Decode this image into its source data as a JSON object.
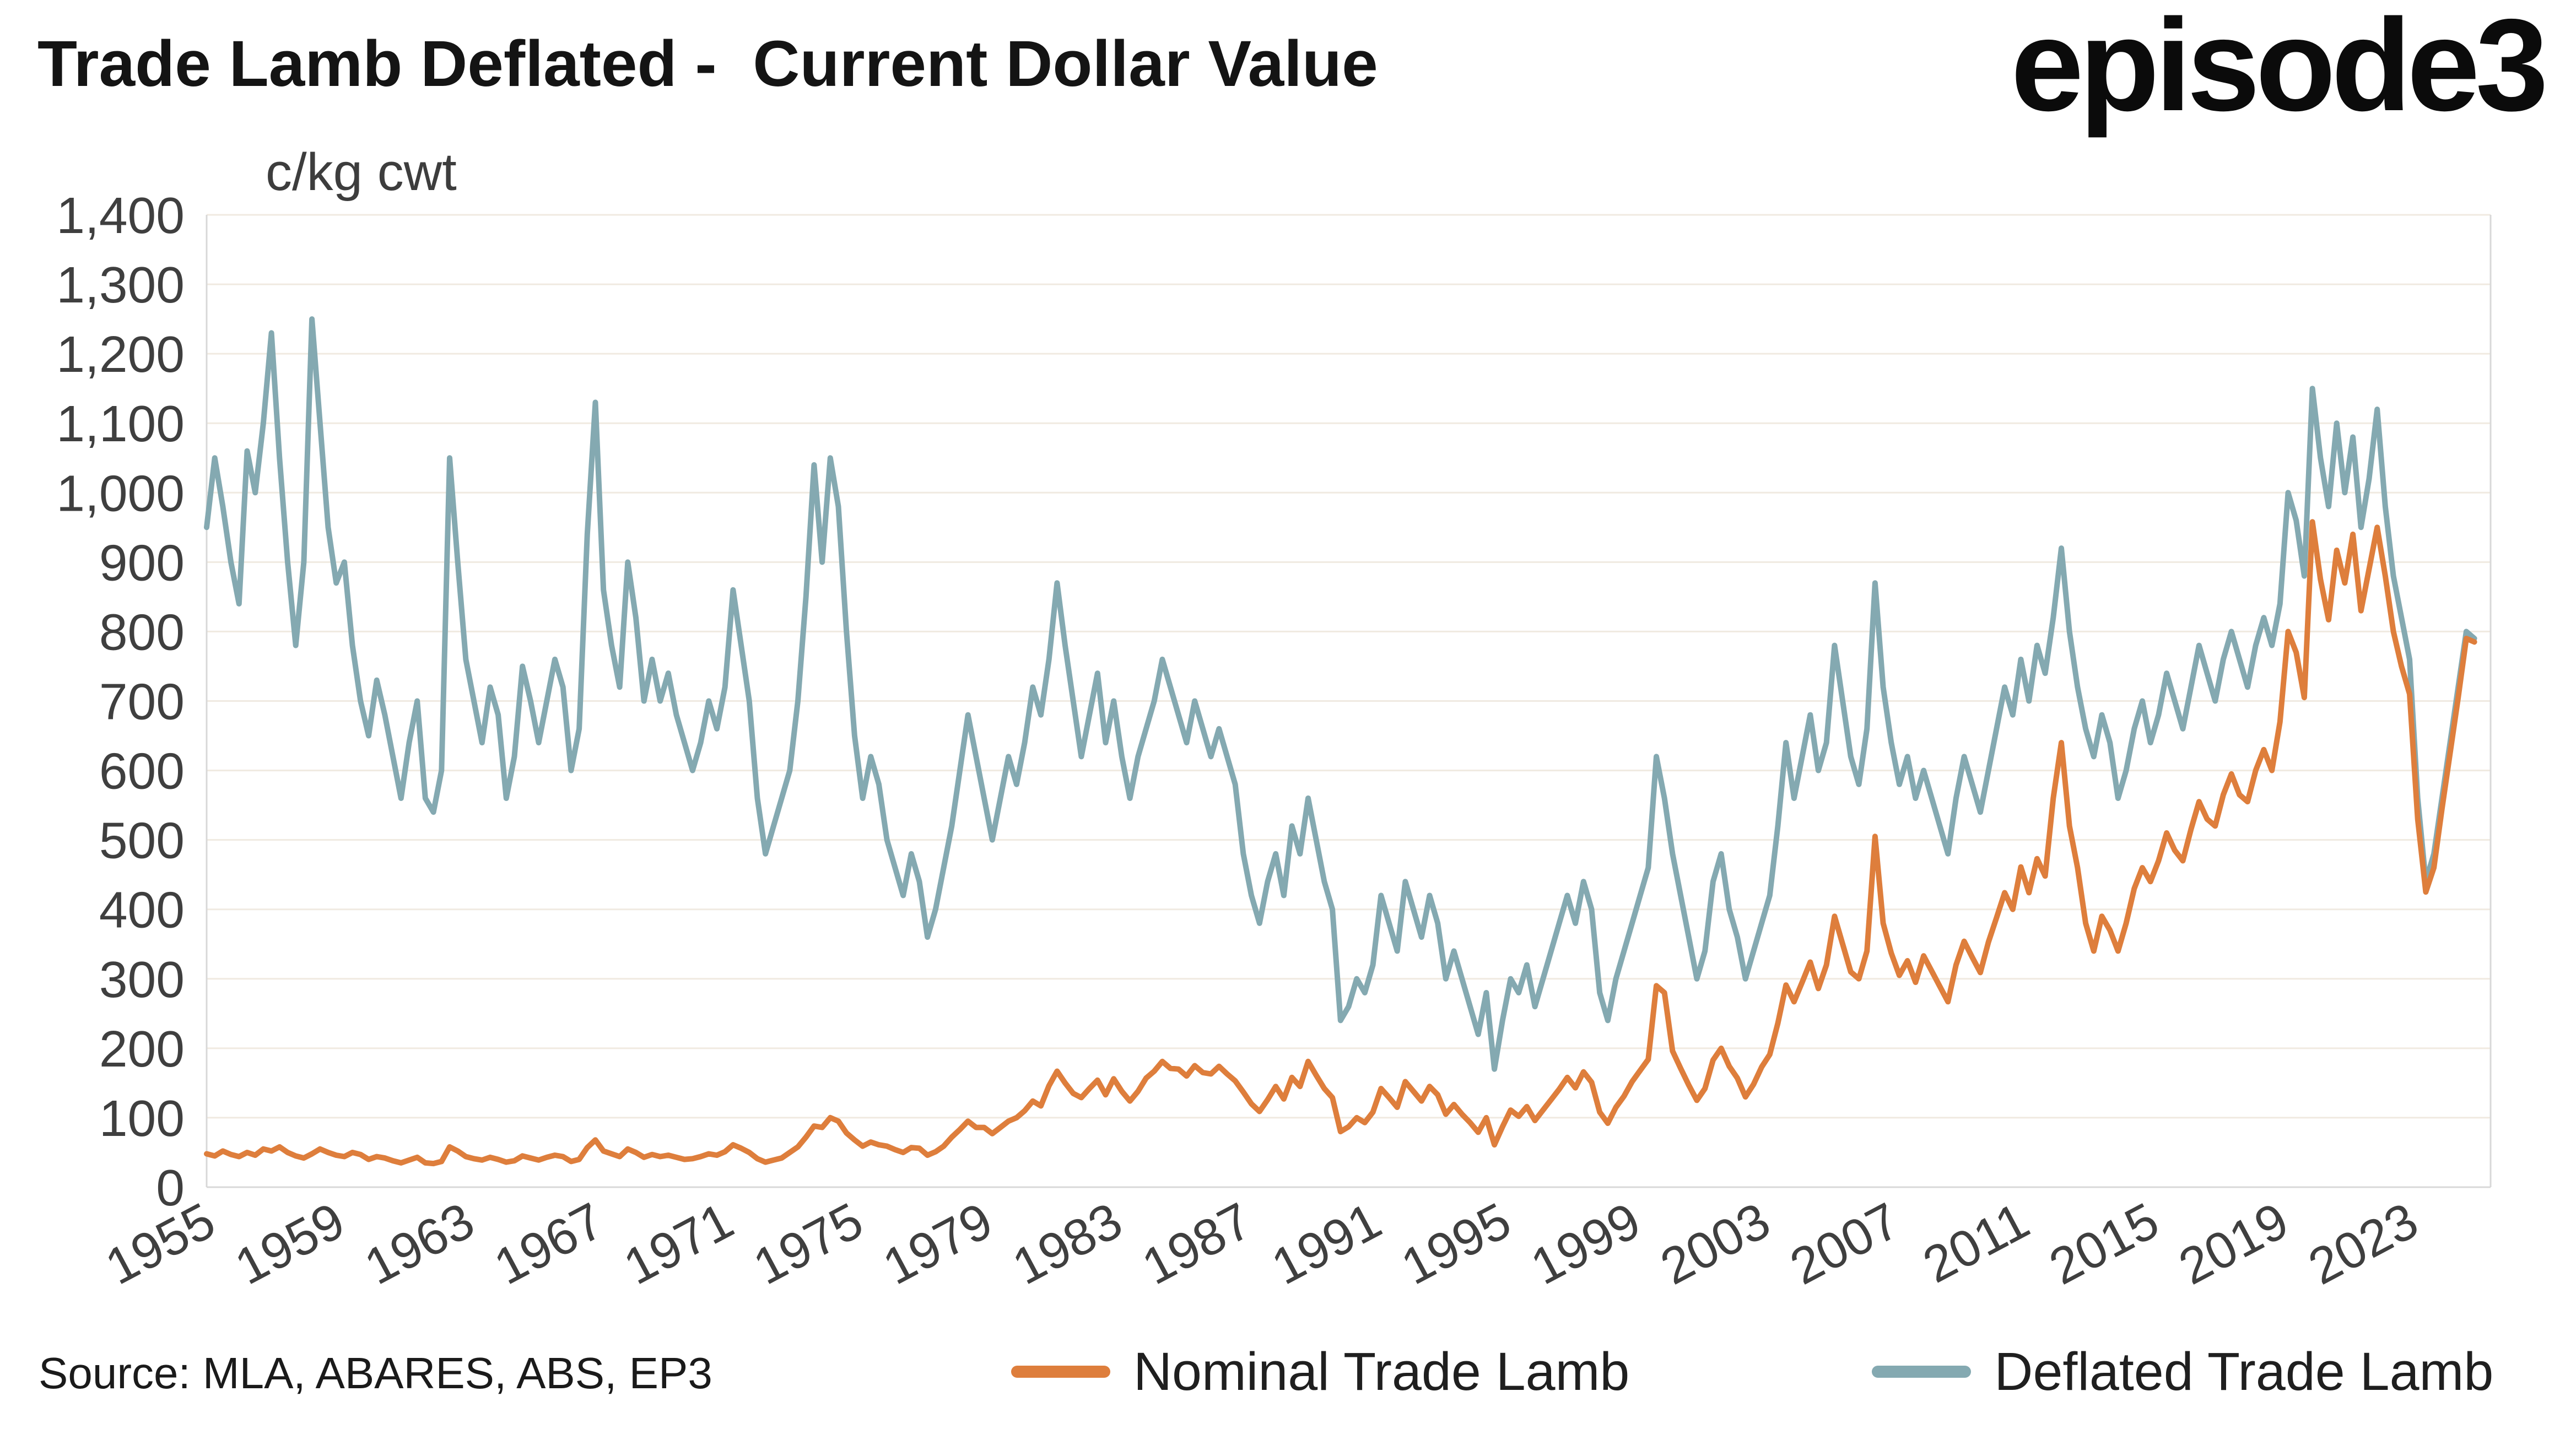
{
  "page": {
    "title": "Trade Lamb Deflated -  Current Dollar Value",
    "logo": "episode3",
    "source": "Source: MLA, ABARES, ABS, EP3"
  },
  "chart_data": {
    "type": "line",
    "title": "Trade Lamb Deflated -  Current Dollar Value",
    "xlabel": "",
    "ylabel": "c/kg cwt",
    "ylim": [
      0,
      1400
    ],
    "ytick_step": 100,
    "xlim": [
      1955,
      2025.5
    ],
    "x_start": 1955,
    "x_step": 0.25,
    "xticks": [
      1955,
      1959,
      1963,
      1967,
      1971,
      1975,
      1979,
      1983,
      1987,
      1991,
      1995,
      1999,
      2003,
      2007,
      2011,
      2015,
      2019,
      2023
    ],
    "grid": "horizontal",
    "legend_position": "bottom",
    "colors": {
      "grid": "#F0EAE1",
      "axis": "#D8D8D8",
      "text": "#3F3F3F"
    },
    "series": [
      {
        "name": "Nominal Trade Lamb",
        "color": "#DE7E3C",
        "values": [
          48,
          45,
          52,
          47,
          44,
          50,
          46,
          55,
          52,
          58,
          50,
          45,
          42,
          48,
          55,
          50,
          46,
          44,
          50,
          47,
          40,
          44,
          42,
          38,
          35,
          39,
          43,
          35,
          34,
          37,
          58,
          52,
          44,
          41,
          39,
          43,
          40,
          36,
          38,
          45,
          42,
          39,
          43,
          46,
          44,
          37,
          40,
          57,
          68,
          52,
          48,
          44,
          55,
          50,
          43,
          47,
          44,
          46,
          43,
          40,
          41,
          44,
          48,
          46,
          51,
          61,
          56,
          50,
          41,
          36,
          39,
          42,
          50,
          58,
          72,
          88,
          86,
          100,
          95,
          78,
          68,
          59,
          65,
          61,
          59,
          54,
          50,
          57,
          56,
          46,
          51,
          59,
          72,
          83,
          95,
          86,
          86,
          77,
          86,
          95,
          100,
          110,
          124,
          117,
          146,
          167,
          150,
          135,
          129,
          142,
          154,
          133,
          156,
          138,
          124,
          138,
          157,
          167,
          181,
          171,
          170,
          160,
          175,
          165,
          163,
          174,
          163,
          153,
          137,
          120,
          109,
          126,
          145,
          127,
          158,
          145,
          181,
          161,
          142,
          129,
          80,
          87,
          100,
          93,
          108,
          142,
          129,
          115,
          152,
          138,
          124,
          145,
          133,
          105,
          119,
          105,
          93,
          79,
          100,
          61,
          87,
          111,
          102,
          116,
          96,
          111,
          126,
          141,
          158,
          143,
          166,
          151,
          108,
          92,
          115,
          131,
          152,
          168,
          184,
          290,
          280,
          196,
          171,
          147,
          125,
          142,
          183,
          200,
          174,
          157,
          130,
          148,
          173,
          191,
          236,
          291,
          267,
          295,
          324,
          286,
          320,
          390,
          350,
          310,
          300,
          340,
          505,
          380,
          337,
          305,
          326,
          295,
          333,
          311,
          289,
          267,
          320,
          354,
          331,
          309,
          353,
          388,
          424,
          400,
          461,
          424,
          473,
          448,
          560,
          640,
          520,
          460,
          380,
          340,
          390,
          370,
          340,
          380,
          430,
          460,
          440,
          470,
          510,
          485,
          470,
          515,
          555,
          530,
          520,
          565,
          595,
          565,
          555,
          600,
          630,
          600,
          670,
          800,
          770,
          705,
          958,
          875,
          817,
          917,
          870,
          940,
          830,
          890,
          950,
          880,
          800,
          750,
          710,
          530,
          425,
          460,
          545,
          625,
          705,
          790,
          785
        ]
      },
      {
        "name": "Deflated Trade Lamb",
        "color": "#84A9B1",
        "values": [
          950,
          1050,
          980,
          900,
          840,
          1060,
          1000,
          1100,
          1230,
          1050,
          900,
          780,
          900,
          1250,
          1100,
          950,
          870,
          900,
          780,
          700,
          650,
          730,
          680,
          620,
          560,
          640,
          700,
          560,
          540,
          600,
          1050,
          900,
          760,
          700,
          640,
          720,
          680,
          560,
          620,
          750,
          700,
          640,
          700,
          760,
          720,
          600,
          660,
          940,
          1130,
          860,
          780,
          720,
          900,
          820,
          700,
          760,
          700,
          740,
          680,
          640,
          600,
          640,
          700,
          660,
          720,
          860,
          780,
          700,
          560,
          480,
          520,
          560,
          600,
          700,
          850,
          1040,
          900,
          1050,
          980,
          800,
          650,
          560,
          620,
          580,
          500,
          460,
          420,
          480,
          440,
          360,
          400,
          460,
          520,
          600,
          680,
          620,
          560,
          500,
          560,
          620,
          580,
          640,
          720,
          680,
          760,
          870,
          780,
          700,
          620,
          680,
          740,
          640,
          700,
          620,
          560,
          620,
          660,
          700,
          760,
          720,
          680,
          640,
          700,
          660,
          620,
          660,
          620,
          580,
          480,
          420,
          380,
          440,
          480,
          420,
          520,
          480,
          560,
          500,
          440,
          400,
          240,
          260,
          300,
          280,
          320,
          420,
          380,
          340,
          440,
          400,
          360,
          420,
          380,
          300,
          340,
          300,
          260,
          220,
          280,
          170,
          240,
          300,
          280,
          320,
          260,
          300,
          340,
          380,
          420,
          380,
          440,
          400,
          280,
          240,
          300,
          340,
          380,
          420,
          460,
          620,
          560,
          480,
          420,
          360,
          300,
          340,
          440,
          480,
          400,
          360,
          300,
          340,
          380,
          420,
          520,
          640,
          560,
          620,
          680,
          600,
          640,
          780,
          700,
          620,
          580,
          660,
          870,
          720,
          640,
          580,
          620,
          560,
          600,
          560,
          520,
          480,
          560,
          620,
          580,
          540,
          600,
          660,
          720,
          680,
          760,
          700,
          780,
          740,
          820,
          920,
          800,
          720,
          660,
          620,
          680,
          640,
          560,
          600,
          660,
          700,
          640,
          680,
          740,
          700,
          660,
          720,
          780,
          740,
          700,
          760,
          800,
          760,
          720,
          780,
          820,
          780,
          840,
          1000,
          960,
          880,
          1150,
          1050,
          980,
          1100,
          1000,
          1080,
          950,
          1020,
          1120,
          980,
          880,
          820,
          760,
          560,
          440,
          480,
          560,
          640,
          720,
          800,
          790
        ]
      }
    ]
  }
}
